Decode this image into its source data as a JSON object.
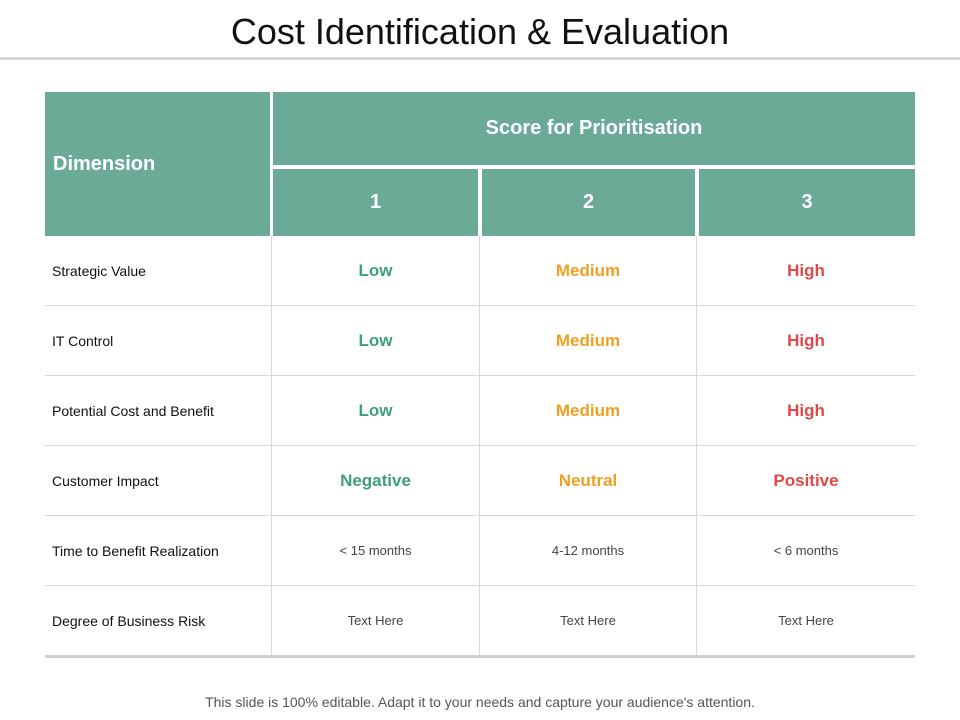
{
  "title": "Cost Identification & Evaluation",
  "table": {
    "dimension_header": "Dimension",
    "score_header": "Score for Prioritisation",
    "columns": [
      "1",
      "2",
      "3"
    ],
    "rows": [
      {
        "label": "Strategic Value",
        "values": [
          "Low",
          "Medium",
          "High"
        ]
      },
      {
        "label": "IT  Control",
        "values": [
          "Low",
          "Medium",
          "High"
        ]
      },
      {
        "label": "Potential Cost and Benefit",
        "values": [
          "Low",
          "Medium",
          "High"
        ]
      },
      {
        "label": "Customer Impact",
        "values": [
          "Negative",
          "Neutral",
          "Positive"
        ]
      },
      {
        "label": "Time to Benefit Realization",
        "values": [
          "< 15 months",
          "4-12 months",
          "< 6 months"
        ]
      },
      {
        "label": "Degree of Business Risk",
        "values": [
          "Text Here",
          "Text Here",
          "Text Here"
        ]
      }
    ]
  },
  "colors": {
    "header_bg": "#6aaa96",
    "level_1": "#3e9f78",
    "level_2": "#f0a020",
    "level_3": "#e04848"
  },
  "footer": "This slide is 100% editable. Adapt it to your needs and capture your audience's attention."
}
